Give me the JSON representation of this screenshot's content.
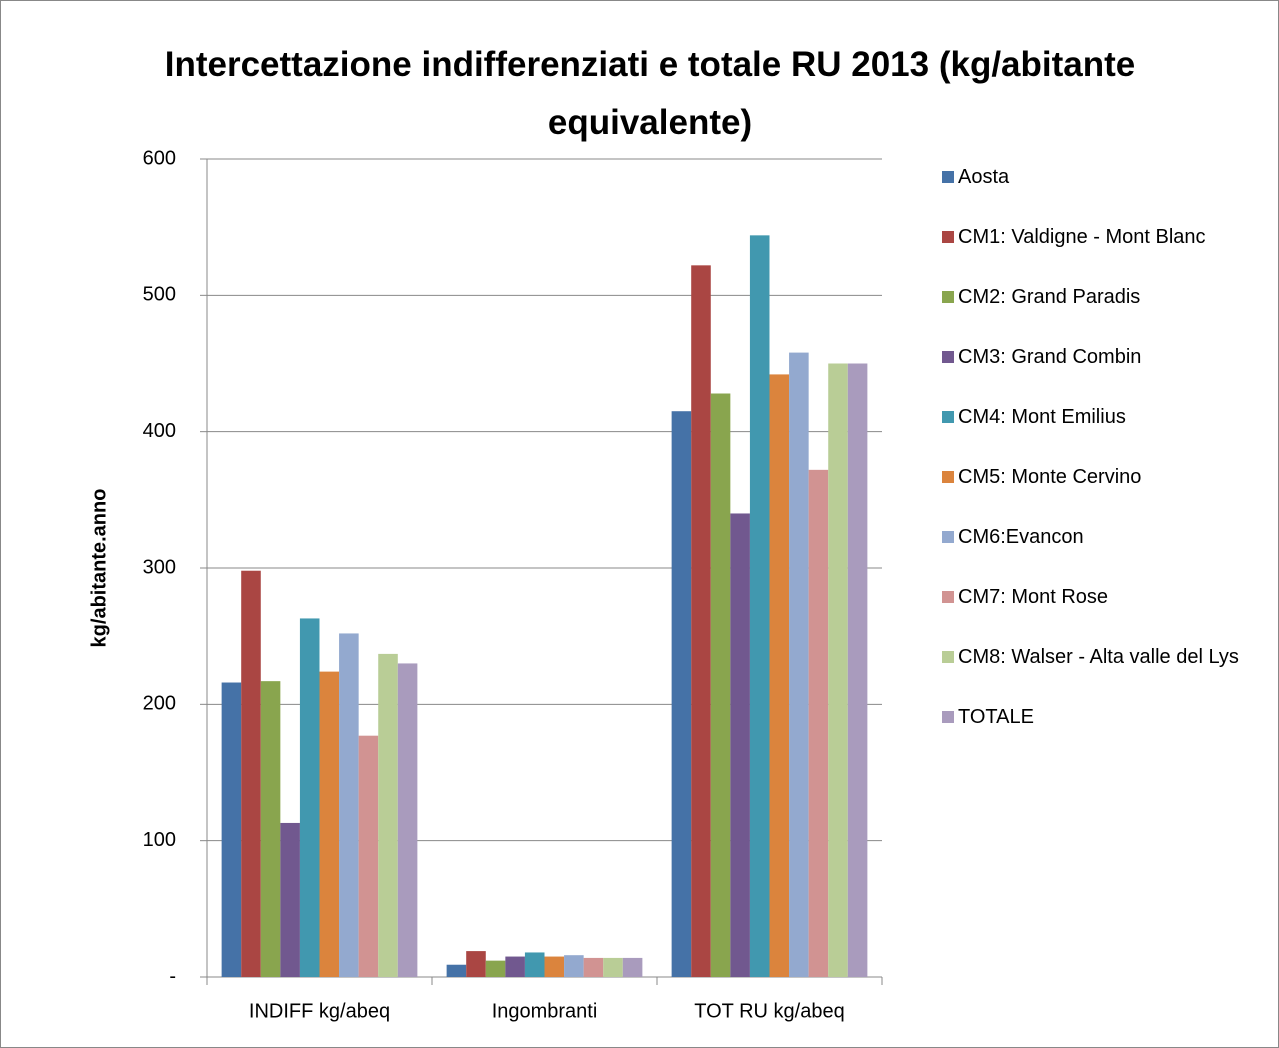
{
  "chart_data": {
    "type": "bar",
    "title": "Intercettazione indifferenziati e totale RU 2013 (kg/abitante equivalente)",
    "ylabel": "kg/abitante.anno",
    "categories": [
      "INDIFF kg/abeq",
      "Ingombranti",
      "TOT RU kg/abeq"
    ],
    "series": [
      {
        "name": "Aosta",
        "color": "#4572a7",
        "values": [
          216,
          9,
          415
        ]
      },
      {
        "name": "CM1: Valdigne - Mont Blanc",
        "color": "#aa4643",
        "values": [
          298,
          19,
          522
        ]
      },
      {
        "name": "CM2: Grand Paradis",
        "color": "#89a54e",
        "values": [
          217,
          12,
          428
        ]
      },
      {
        "name": "CM3: Grand Combin",
        "color": "#71588f",
        "values": [
          113,
          15,
          340
        ]
      },
      {
        "name": "CM4: Mont Emilius",
        "color": "#4198af",
        "values": [
          263,
          18,
          544
        ]
      },
      {
        "name": "CM5: Monte Cervino",
        "color": "#db843d",
        "values": [
          224,
          15,
          442
        ]
      },
      {
        "name": "CM6:Evancon",
        "color": "#93a9cf",
        "values": [
          252,
          16,
          458
        ]
      },
      {
        "name": "CM7: Mont Rose",
        "color": "#d19392",
        "values": [
          177,
          14,
          372
        ]
      },
      {
        "name": "CM8: Walser - Alta valle del Lys",
        "color": "#b9cd96",
        "values": [
          237,
          14,
          450
        ]
      },
      {
        "name": "TOTALE",
        "color": "#a99bbd",
        "values": [
          230,
          14,
          450
        ]
      }
    ],
    "ylim": [
      0,
      600
    ],
    "yticks": [
      {
        "value": 0,
        "label": "-"
      },
      100,
      200,
      300,
      400,
      500,
      600
    ],
    "grid": true,
    "legend": "right"
  }
}
